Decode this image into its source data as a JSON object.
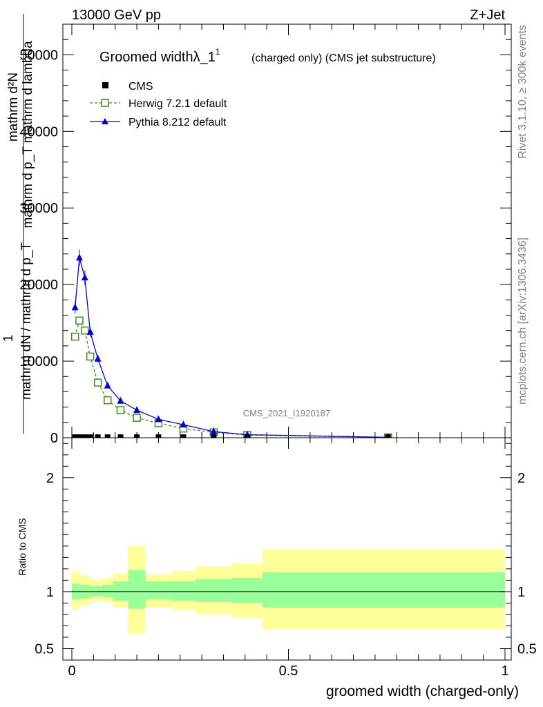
{
  "header": {
    "left": "13000 GeV pp",
    "right": "Z+Jet"
  },
  "side": {
    "rivet": "Rivet 3.1.10, ≥ 300k events",
    "mcplots": "mcplots.cern.ch [arXiv:1306.3436]"
  },
  "colors": {
    "cms": "#000000",
    "herwig": "#3a8e1c",
    "pythia": "#0000dd",
    "band_inner": "#99ff99",
    "band_outer": "#ffff99"
  },
  "chart_data": [
    {
      "type": "line",
      "title": "Groomed widthλ_1",
      "title_sup": "1",
      "title_suffix": "(charged only) (CMS jet substructure)",
      "watermark": "CMS_2021_I1920187",
      "ylabel_top": "mathrm d²N",
      "ylabel_top_sub": "mathrm d p_T mathrm d lambda",
      "ylabel_one": "1",
      "ylabel_bottom": "mathrm dN / mathrm d p_T",
      "ylim": [
        0,
        54000
      ],
      "xlim": [
        -0.02,
        1.02
      ],
      "yticks": [
        0,
        10000,
        20000,
        30000,
        40000,
        50000
      ],
      "ytick_labels": [
        "0",
        "10000",
        "20000",
        "30000",
        "40000",
        "50000"
      ],
      "legend": [
        "CMS",
        "Herwig 7.2.1 default",
        "Pythia 8.212 default"
      ],
      "x": [
        0.0075,
        0.0175,
        0.03,
        0.0425,
        0.06,
        0.0825,
        0.1125,
        0.15,
        0.2,
        0.2575,
        0.3275,
        0.405,
        0.73
      ],
      "series": [
        {
          "name": "CMS",
          "values": [
            80,
            80,
            80,
            80,
            80,
            80,
            80,
            80,
            80,
            80,
            80,
            80,
            80
          ]
        },
        {
          "name": "Herwig 7.2.1 default",
          "values": [
            13200,
            15300,
            14000,
            10600,
            7200,
            4900,
            3600,
            2600,
            1900,
            1200,
            700,
            350,
            40
          ]
        },
        {
          "name": "Pythia 8.212 default",
          "values": [
            17000,
            23500,
            20900,
            13800,
            10300,
            6800,
            4800,
            3600,
            2400,
            1700,
            800,
            400,
            50
          ]
        }
      ]
    },
    {
      "type": "area",
      "ylabel": "Ratio to CMS",
      "xlabel": "groomed width (charged-only)",
      "ylim": [
        0.4,
        2.35
      ],
      "yticks": [
        0.5,
        1,
        2
      ],
      "ytick_labels": [
        "0.5",
        "1",
        "2"
      ],
      "xticks": [
        0,
        0.5,
        1
      ],
      "xtick_labels": [
        "0",
        "0.5",
        "1"
      ],
      "bins": [
        {
          "lo": 0.0,
          "hi": 0.015,
          "inner": [
            0.93,
            1.07
          ],
          "outer": [
            0.84,
            1.18
          ]
        },
        {
          "lo": 0.015,
          "hi": 0.02,
          "inner": [
            0.93,
            1.07
          ],
          "outer": [
            0.86,
            1.16
          ]
        },
        {
          "lo": 0.02,
          "hi": 0.04,
          "inner": [
            0.94,
            1.06
          ],
          "outer": [
            0.88,
            1.14
          ]
        },
        {
          "lo": 0.04,
          "hi": 0.05,
          "inner": [
            0.95,
            1.05
          ],
          "outer": [
            0.9,
            1.12
          ]
        },
        {
          "lo": 0.05,
          "hi": 0.07,
          "inner": [
            0.96,
            1.05
          ],
          "outer": [
            0.92,
            1.1
          ]
        },
        {
          "lo": 0.07,
          "hi": 0.095,
          "inner": [
            0.95,
            1.06
          ],
          "outer": [
            0.91,
            1.12
          ]
        },
        {
          "lo": 0.095,
          "hi": 0.13,
          "inner": [
            0.92,
            1.09
          ],
          "outer": [
            0.86,
            1.16
          ]
        },
        {
          "lo": 0.13,
          "hi": 0.17,
          "inner": [
            0.85,
            1.19
          ],
          "outer": [
            0.63,
            1.4
          ]
        },
        {
          "lo": 0.17,
          "hi": 0.23,
          "inner": [
            0.93,
            1.09
          ],
          "outer": [
            0.86,
            1.15
          ]
        },
        {
          "lo": 0.23,
          "hi": 0.285,
          "inner": [
            0.92,
            1.09
          ],
          "outer": [
            0.84,
            1.18
          ]
        },
        {
          "lo": 0.285,
          "hi": 0.37,
          "inner": [
            0.91,
            1.11
          ],
          "outer": [
            0.8,
            1.22
          ]
        },
        {
          "lo": 0.37,
          "hi": 0.44,
          "inner": [
            0.9,
            1.12
          ],
          "outer": [
            0.77,
            1.25
          ]
        },
        {
          "lo": 0.44,
          "hi": 1.0,
          "inner": [
            0.86,
            1.17
          ],
          "outer": [
            0.67,
            1.37
          ]
        }
      ]
    }
  ]
}
